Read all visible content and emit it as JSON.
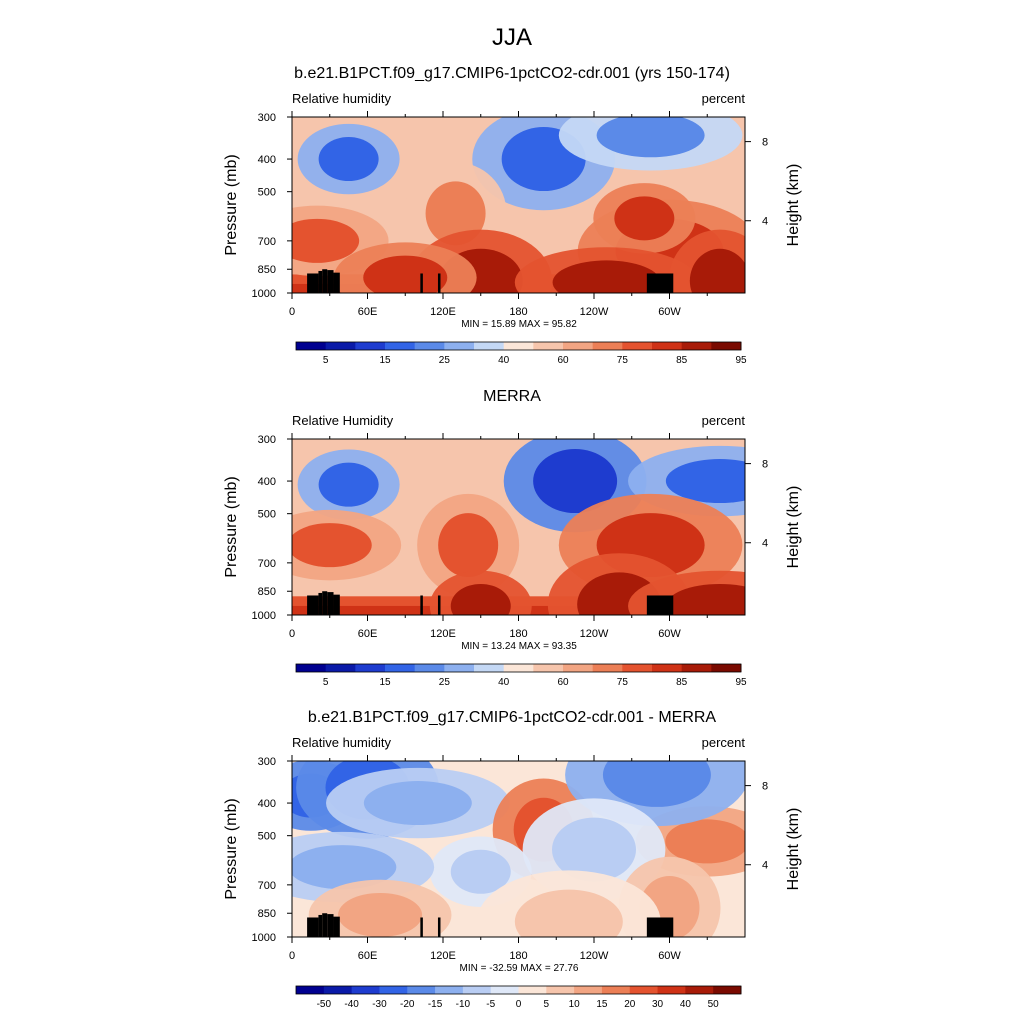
{
  "figure": {
    "title": "JJA"
  },
  "chart_data": [
    {
      "type": "heatmap",
      "title": "b.e21.B1PCT.f09_g17.CMIP6-1pctCO2-cdr.001 (yrs 150-174)",
      "left_label": "Relative humidity",
      "right_label": "percent",
      "ylabel": "Pressure (mb)",
      "ylabel_right": "Height (km)",
      "xticks": [
        "0",
        "60E",
        "120E",
        "180",
        "120W",
        "60W"
      ],
      "x_values": [
        0,
        60,
        120,
        180,
        240,
        300
      ],
      "xlim": [
        0,
        360
      ],
      "yticks": [
        "300",
        "400",
        "500",
        "700",
        "850",
        "1000"
      ],
      "y_values": [
        300,
        400,
        500,
        700,
        850,
        1000
      ],
      "ylim": [
        1000,
        300
      ],
      "yticks_right": [
        "8",
        "4"
      ],
      "stats": "MIN =  15.89  MAX =  95.82",
      "colorbar": {
        "ticks": [
          "5",
          "15",
          "25",
          "40",
          "60",
          "75",
          "85",
          "95"
        ]
      },
      "blobs": [
        {
          "x": 45,
          "p": 400,
          "v": 20
        },
        {
          "x": 200,
          "p": 400,
          "v": 22
        },
        {
          "x": 285,
          "p": 340,
          "v": 30
        },
        {
          "x": 130,
          "p": 580,
          "v": 68
        },
        {
          "x": 20,
          "p": 700,
          "v": 78
        },
        {
          "x": 300,
          "p": 750,
          "v": 85
        },
        {
          "x": 280,
          "p": 600,
          "v": 80
        },
        {
          "x": 150,
          "p": 920,
          "v": 90
        },
        {
          "x": 250,
          "p": 930,
          "v": 92
        },
        {
          "x": 340,
          "p": 920,
          "v": 88
        },
        {
          "x": 90,
          "p": 900,
          "v": 85
        }
      ]
    },
    {
      "type": "heatmap",
      "title": "MERRA",
      "left_label": "Relative Humidity",
      "right_label": "percent",
      "ylabel": "Pressure (mb)",
      "ylabel_right": "Height (km)",
      "xticks": [
        "0",
        "60E",
        "120E",
        "180",
        "120W",
        "60W"
      ],
      "x_values": [
        0,
        60,
        120,
        180,
        240,
        300
      ],
      "xlim": [
        0,
        360
      ],
      "yticks": [
        "300",
        "400",
        "500",
        "700",
        "850",
        "1000"
      ],
      "y_values": [
        300,
        400,
        500,
        700,
        850,
        1000
      ],
      "ylim": [
        1000,
        300
      ],
      "yticks_right": [
        "8",
        "4"
      ],
      "stats": "MIN =  13.24  MAX =  93.35",
      "colorbar": {
        "ticks": [
          "5",
          "15",
          "25",
          "40",
          "60",
          "75",
          "85",
          "95"
        ]
      },
      "blobs": [
        {
          "x": 45,
          "p": 410,
          "v": 22
        },
        {
          "x": 225,
          "p": 400,
          "v": 15
        },
        {
          "x": 340,
          "p": 400,
          "v": 25
        },
        {
          "x": 140,
          "p": 620,
          "v": 78
        },
        {
          "x": 30,
          "p": 620,
          "v": 75
        },
        {
          "x": 285,
          "p": 620,
          "v": 82
        },
        {
          "x": 150,
          "p": 940,
          "v": 90
        },
        {
          "x": 260,
          "p": 930,
          "v": 90
        },
        {
          "x": 340,
          "p": 940,
          "v": 88
        }
      ]
    },
    {
      "type": "heatmap",
      "title": "b.e21.B1PCT.f09_g17.CMIP6-1pctCO2-cdr.001 - MERRA",
      "left_label": "Relative humidity",
      "right_label": "percent",
      "ylabel": "Pressure (mb)",
      "ylabel_right": "Height (km)",
      "xticks": [
        "0",
        "60E",
        "120E",
        "180",
        "120W",
        "60W"
      ],
      "x_values": [
        0,
        60,
        120,
        180,
        240,
        300
      ],
      "xlim": [
        0,
        360
      ],
      "yticks": [
        "300",
        "400",
        "500",
        "700",
        "850",
        "1000"
      ],
      "y_values": [
        300,
        400,
        500,
        700,
        850,
        1000
      ],
      "ylim": [
        1000,
        300
      ],
      "yticks_right": [
        "8",
        "4"
      ],
      "stats": "MIN = -32.59  MAX =  27.76",
      "colorbar": {
        "ticks": [
          "-50",
          "-40",
          "-30",
          "-20",
          "-15",
          "-10",
          "-5",
          "0",
          "5",
          "10",
          "15",
          "20",
          "30",
          "40",
          "50"
        ]
      },
      "blobs": [
        {
          "x": 15,
          "p": 380,
          "v": -28
        },
        {
          "x": 60,
          "p": 360,
          "v": -26
        },
        {
          "x": 100,
          "p": 400,
          "v": -12
        },
        {
          "x": 200,
          "p": 480,
          "v": 22
        },
        {
          "x": 330,
          "p": 520,
          "v": 18
        },
        {
          "x": 290,
          "p": 330,
          "v": -20
        },
        {
          "x": 150,
          "p": 640,
          "v": -8
        },
        {
          "x": 240,
          "p": 550,
          "v": -6
        },
        {
          "x": 40,
          "p": 620,
          "v": -12
        },
        {
          "x": 300,
          "p": 820,
          "v": 14
        },
        {
          "x": 70,
          "p": 860,
          "v": 12
        },
        {
          "x": 220,
          "p": 900,
          "v": 6
        }
      ]
    }
  ]
}
